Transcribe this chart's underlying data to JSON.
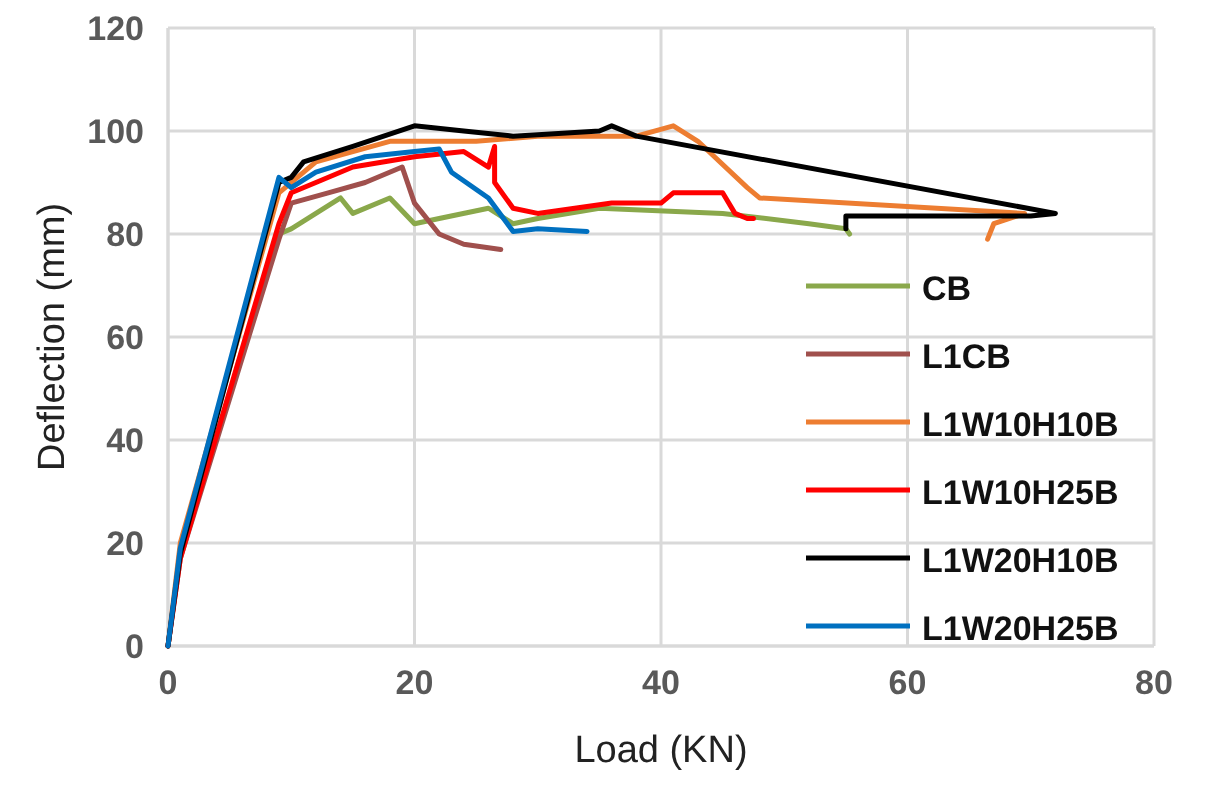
{
  "chart_data": {
    "type": "line",
    "xlabel": "Load (KN)",
    "ylabel": "Deflection (mm)",
    "xlim": [
      0,
      80
    ],
    "xticks": [
      0,
      20,
      40,
      60,
      80
    ],
    "ylim": [
      0,
      120
    ],
    "yticks": [
      0,
      20,
      40,
      60,
      80,
      100,
      120
    ],
    "grid": true,
    "legend": "right",
    "marker": "none",
    "line_style": "solid",
    "series": [
      {
        "name": "CB",
        "color": "#8aa84b",
        "x": [
          0,
          1,
          9,
          10,
          14,
          15,
          18,
          20,
          22,
          26,
          28,
          30,
          35,
          45,
          52,
          55,
          55.3
        ],
        "values": [
          0,
          18,
          80,
          81,
          87,
          84,
          87,
          82,
          83,
          85,
          82,
          83,
          85,
          84,
          82,
          81,
          80
        ]
      },
      {
        "name": "L1CB",
        "color": "#a0504d",
        "x": [
          0,
          1,
          9,
          10,
          13,
          16,
          19,
          20,
          22,
          24,
          27
        ],
        "values": [
          0,
          17,
          79,
          86,
          88,
          90,
          93,
          86,
          80,
          78,
          77
        ]
      },
      {
        "name": "L1W10H10B",
        "color": "#ed7d31",
        "x": [
          0,
          1,
          9,
          12,
          18,
          25,
          30,
          38,
          41,
          43,
          47,
          48,
          69.5,
          67,
          66.5
        ],
        "values": [
          0,
          20,
          88,
          94,
          98,
          98,
          99,
          99,
          101,
          98,
          89,
          87,
          84,
          82,
          79
        ]
      },
      {
        "name": "L1W10H25B",
        "color": "#ff0000",
        "x": [
          0,
          1,
          9,
          10,
          12,
          15,
          20,
          24,
          26,
          26.5,
          26.5,
          28,
          30,
          36,
          40,
          41,
          45,
          46,
          47,
          47.5
        ],
        "values": [
          0,
          17,
          82,
          88,
          90,
          93,
          95,
          96,
          93,
          97,
          90,
          85,
          84,
          86,
          86,
          88,
          88,
          84,
          83,
          83
        ]
      },
      {
        "name": "L1W20H10B",
        "color": "#000000",
        "x": [
          0,
          1,
          9,
          10,
          11,
          15,
          20,
          24,
          28,
          35,
          36,
          38,
          72,
          70,
          55,
          55
        ],
        "values": [
          0,
          18,
          90,
          91,
          94,
          97,
          101,
          100,
          99,
          100,
          101,
          99,
          84,
          83.5,
          83.5,
          81
        ]
      },
      {
        "name": "L1W20H25B",
        "color": "#0070c0",
        "x": [
          0,
          1,
          9,
          10,
          12,
          16,
          20,
          22,
          23,
          26,
          28,
          30,
          34
        ],
        "values": [
          0,
          19,
          91,
          89,
          92,
          95,
          96,
          96.5,
          92,
          87,
          80.5,
          81,
          80.5
        ]
      }
    ]
  }
}
